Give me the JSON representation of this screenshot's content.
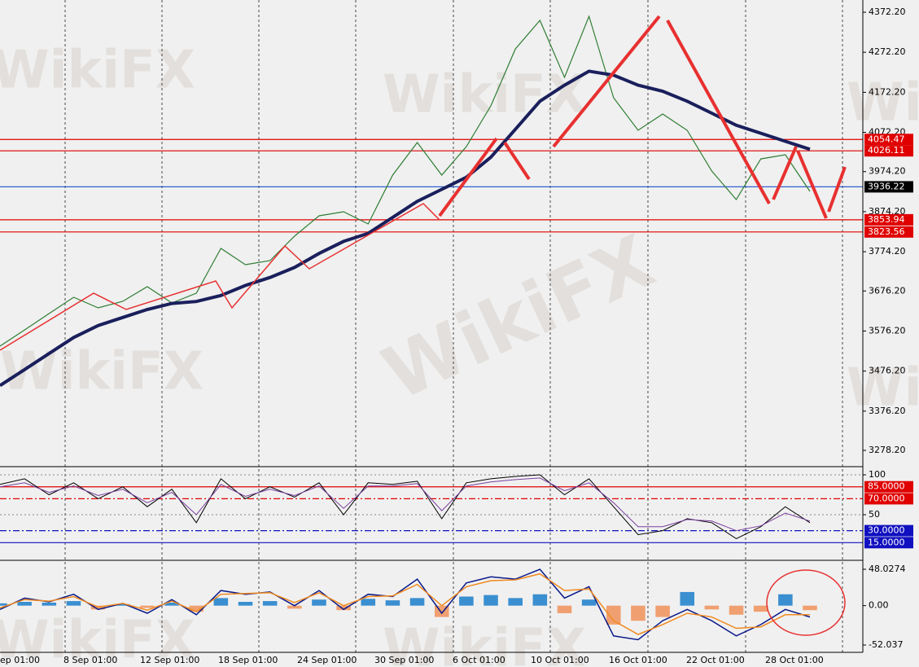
{
  "watermark": "WikiFX",
  "time_labels": [
    "ep 01:00",
    "8 Sep 01:00",
    "12 Sep 01:00",
    "18 Sep 01:00",
    "24 Sep 01:00",
    "30 Sep 01:00",
    "6 Oct 01:00",
    "10 Oct 01:00",
    "16 Oct 01:00",
    "22 Oct 01:00",
    "28 Oct 01:00"
  ],
  "chart_data": [
    {
      "type": "line",
      "ylim": [
        3239.6,
        4402.7
      ],
      "yticks": [
        {
          "value": 4372.2,
          "label": "4372.20"
        },
        {
          "value": 4272.2,
          "label": "4272.20"
        },
        {
          "value": 4172.2,
          "label": "4172.20"
        },
        {
          "value": 4072.2,
          "label": "4072.20"
        },
        {
          "value": 3974.2,
          "label": "3974.20"
        },
        {
          "value": 3874.2,
          "label": "3874.20"
        },
        {
          "value": 3774.2,
          "label": "3774.20"
        },
        {
          "value": 3676.2,
          "label": "3676.20"
        },
        {
          "value": 3576.2,
          "label": "3576.20"
        },
        {
          "value": 3476.2,
          "label": "3476.20"
        },
        {
          "value": 3376.2,
          "label": "3376.20"
        },
        {
          "value": 3278.2,
          "label": "3278.20"
        }
      ],
      "series": [
        {
          "color": "#2e7d32",
          "width": 1.2,
          "values": [
            3538.5,
            3579,
            3619.9,
            3660.5,
            3634.1,
            3650.4,
            3687,
            3646.3,
            3670.7,
            3782.5,
            3741.9,
            3752,
            3813,
            3863.9,
            3874,
            3843.5,
            3965.5,
            4046.9,
            3965.5,
            4036.7,
            4138.4,
            4280.7,
            4351.9,
            4209.5,
            4362,
            4158.7,
            4077.4,
            4118,
            4077.4,
            3975.7,
            3904.5,
            4006,
            4016.4,
            3924.9
          ]
        },
        {
          "color": "#1a1f5c",
          "width": 4,
          "values": [
            3440,
            3480,
            3520,
            3560,
            3590,
            3610,
            3630,
            3645,
            3650,
            3665,
            3690,
            3710,
            3735,
            3770,
            3800,
            3820,
            3860,
            3900,
            3930,
            3960,
            4010,
            4080,
            4150,
            4190,
            4225,
            4215,
            4190,
            4175,
            4150,
            4120,
            4090,
            4070,
            4050,
            4030
          ]
        }
      ],
      "levels": [
        {
          "value": 4054.47,
          "color": "#e00000"
        },
        {
          "value": 4026.11,
          "color": "#e00000"
        },
        {
          "value": 3936.22,
          "color": "#3060d0",
          "box": "#000000"
        },
        {
          "value": 3853.94,
          "color": "#e00000"
        },
        {
          "value": 3823.56,
          "color": "#e00000"
        }
      ]
    },
    {
      "type": "line",
      "ylim": [
        -5.1,
        109.2
      ],
      "yticks": [
        100,
        50
      ],
      "series": [
        {
          "color": "#000000",
          "width": 1,
          "values": [
            88,
            95,
            75,
            90,
            70,
            85,
            60,
            82,
            40,
            95,
            70,
            85,
            72,
            90,
            50,
            90,
            88,
            92,
            45,
            90,
            95,
            98,
            100,
            75,
            95,
            60,
            25,
            30,
            45,
            40,
            20,
            35,
            60,
            40
          ]
        },
        {
          "color": "#7a3fa0",
          "width": 1,
          "values": [
            85,
            90,
            78,
            86,
            74,
            82,
            65,
            78,
            50,
            88,
            73,
            82,
            74,
            86,
            58,
            86,
            86,
            89,
            55,
            86,
            91,
            94,
            96,
            80,
            90,
            65,
            35,
            35,
            44,
            42,
            30,
            36,
            52,
            42
          ]
        }
      ],
      "levels": [
        {
          "value": 85,
          "label": "85.0000",
          "color": "#e00000"
        },
        {
          "value": 70,
          "label": "70.0000",
          "color": "#e00000",
          "dashed": true
        },
        {
          "value": 30,
          "label": "30.0000",
          "color": "#1010c0",
          "dashed": true
        },
        {
          "value": 15,
          "label": "15.0000",
          "color": "#1010c0"
        }
      ]
    },
    {
      "type": "bar",
      "ylim": [
        -60.6,
        57.7
      ],
      "yticks": [
        48.0274,
        {
          "value": 0,
          "label": "0.00"
        },
        -52.037
      ],
      "positive_color": "#3a8fd0",
      "negative_color": "#f0a070",
      "values": [
        3,
        5,
        4,
        6,
        -5,
        2,
        -3,
        4,
        -8,
        10,
        5,
        6,
        -4,
        8,
        -6,
        9,
        7,
        10,
        -15,
        12,
        14,
        10,
        15,
        -10,
        8,
        -25,
        -20,
        -15,
        18,
        -5,
        -12,
        -8,
        15,
        -6
      ],
      "series": [
        {
          "color": "#0a1a8a",
          "width": 1.5,
          "values": [
            -5,
            10,
            5,
            15,
            -5,
            3,
            -10,
            8,
            -12,
            20,
            15,
            18,
            0,
            20,
            -5,
            15,
            12,
            35,
            -10,
            30,
            38,
            35,
            48,
            10,
            25,
            -40,
            -45,
            -20,
            -5,
            -20,
            -40,
            -25,
            -5,
            -15
          ]
        },
        {
          "color": "#f08a20",
          "width": 1.5,
          "values": [
            -3,
            8,
            6,
            12,
            -2,
            3,
            -6,
            6,
            -8,
            15,
            16,
            17,
            4,
            17,
            0,
            12,
            13,
            28,
            0,
            25,
            33,
            34,
            42,
            20,
            22,
            -20,
            -38,
            -25,
            -10,
            -15,
            -30,
            -28,
            -12,
            -12
          ]
        }
      ]
    }
  ]
}
